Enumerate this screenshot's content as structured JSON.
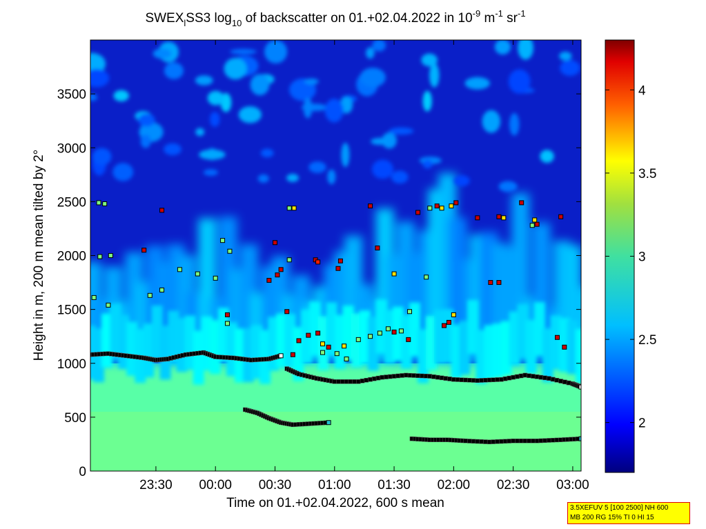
{
  "chart_data": {
    "type": "heatmap",
    "title": {
      "prefix": "SWEX",
      "sub1": "l",
      "mid1": "SS3 log",
      "sub2": "10",
      "mid2": " of backscatter on 01.+02.04.2022 in 10",
      "sup1": "-9",
      "mid3": " m",
      "sup2": "-1",
      "mid4": " sr",
      "sup3": "-1"
    },
    "xlabel": "Time on 01.+02.04.2022, 600 s mean",
    "ylabel": "Height in m, 200 m mean tilted by 2°",
    "x_ticks": [
      "23:30",
      "00:00",
      "00:30",
      "01:00",
      "01:30",
      "02:00",
      "02:30",
      "03:00"
    ],
    "x_tick_hours": [
      -0.5,
      0,
      0.5,
      1,
      1.5,
      2,
      2.5,
      3
    ],
    "xlim_hours": [
      -1.05,
      3.07
    ],
    "y_ticks": [
      "0",
      "500",
      "1000",
      "1500",
      "2000",
      "2500",
      "3000",
      "3500"
    ],
    "y_tick_values": [
      0,
      500,
      1000,
      1500,
      2000,
      2500,
      3000,
      3500
    ],
    "ylim": [
      0,
      4000
    ],
    "colorbar": {
      "ticks": [
        "2",
        "2.5",
        "3",
        "3.5",
        "4"
      ],
      "tick_values": [
        2,
        2.5,
        3,
        3.5,
        4
      ],
      "range": [
        1.7,
        4.3
      ],
      "colormap": "jet"
    },
    "layers": {
      "aerosol_top_height": 1000,
      "boundary_layer_value": 2.9,
      "mid_layer_value": 2.55,
      "free_troposphere_value": 1.8
    },
    "series": [
      {
        "type": "line",
        "color": "#000000",
        "x": [
          -1.05,
          -0.9,
          -0.75,
          -0.6,
          -0.5,
          -0.4,
          -0.25,
          -0.1,
          0.0,
          0.15,
          0.3,
          0.45,
          0.55
        ],
        "y": [
          1080,
          1090,
          1070,
          1050,
          1030,
          1040,
          1080,
          1100,
          1060,
          1050,
          1030,
          1040,
          1070
        ]
      },
      {
        "type": "line",
        "color": "#000000",
        "x": [
          0.6,
          0.7,
          0.85,
          1.0,
          1.2,
          1.4,
          1.6,
          1.8,
          2.0,
          2.2,
          2.4,
          2.6,
          2.8,
          3.0,
          3.07
        ],
        "y": [
          950,
          900,
          860,
          830,
          830,
          870,
          890,
          880,
          850,
          840,
          850,
          890,
          860,
          810,
          780
        ]
      },
      {
        "type": "line",
        "color": "#000000",
        "x": [
          0.25,
          0.35,
          0.45,
          0.55,
          0.65,
          0.8,
          0.95
        ],
        "y": [
          570,
          540,
          490,
          450,
          430,
          440,
          450
        ]
      },
      {
        "type": "line",
        "color": "#000000",
        "x": [
          1.65,
          1.8,
          1.95,
          2.1,
          2.3,
          2.5,
          2.7,
          2.9,
          3.07
        ],
        "y": [
          300,
          290,
          290,
          280,
          270,
          280,
          280,
          290,
          300
        ]
      }
    ],
    "markers": [
      {
        "x": -0.98,
        "y": 2490,
        "v": 3.0
      },
      {
        "x": -0.93,
        "y": 2480,
        "v": 3.0
      },
      {
        "x": -0.45,
        "y": 2420,
        "v": 4.1
      },
      {
        "x": -0.97,
        "y": 1990,
        "v": 3.0
      },
      {
        "x": -0.88,
        "y": 2000,
        "v": 3.0
      },
      {
        "x": -0.6,
        "y": 2050,
        "v": 4.1
      },
      {
        "x": -0.3,
        "y": 1870,
        "v": 3.0
      },
      {
        "x": -0.15,
        "y": 1830,
        "v": 3.0
      },
      {
        "x": 0.0,
        "y": 1790,
        "v": 3.0
      },
      {
        "x": 0.06,
        "y": 2140,
        "v": 3.0
      },
      {
        "x": 0.12,
        "y": 2040,
        "v": 3.0
      },
      {
        "x": -1.02,
        "y": 1610,
        "v": 3.0
      },
      {
        "x": -0.9,
        "y": 1540,
        "v": 3.0
      },
      {
        "x": -0.55,
        "y": 1630,
        "v": 3.0
      },
      {
        "x": -0.45,
        "y": 1680,
        "v": 3.0
      },
      {
        "x": 0.1,
        "y": 1450,
        "v": 4.1
      },
      {
        "x": 0.1,
        "y": 1370,
        "v": 3.0
      },
      {
        "x": 0.5,
        "y": 2120,
        "v": 4.1
      },
      {
        "x": 0.62,
        "y": 2440,
        "v": 3.0
      },
      {
        "x": 0.66,
        "y": 2440,
        "v": 3.4
      },
      {
        "x": 0.62,
        "y": 1960,
        "v": 3.0
      },
      {
        "x": 0.52,
        "y": 1820,
        "v": 4.1
      },
      {
        "x": 0.45,
        "y": 1770,
        "v": 4.1
      },
      {
        "x": 0.55,
        "y": 1870,
        "v": 4.1
      },
      {
        "x": 0.84,
        "y": 1960,
        "v": 4.1
      },
      {
        "x": 0.86,
        "y": 1940,
        "v": 3.9
      },
      {
        "x": 1.05,
        "y": 1950,
        "v": 4.1
      },
      {
        "x": 1.03,
        "y": 1880,
        "v": 4.1
      },
      {
        "x": 1.3,
        "y": 2460,
        "v": 4.1
      },
      {
        "x": 1.36,
        "y": 2070,
        "v": 4.1
      },
      {
        "x": 1.5,
        "y": 1830,
        "v": 3.4
      },
      {
        "x": 1.77,
        "y": 1800,
        "v": 3.0
      },
      {
        "x": 1.63,
        "y": 1480,
        "v": 3.0
      },
      {
        "x": 0.6,
        "y": 1480,
        "v": 4.1
      },
      {
        "x": 0.7,
        "y": 1210,
        "v": 4.1
      },
      {
        "x": 0.78,
        "y": 1260,
        "v": 4.1
      },
      {
        "x": 0.86,
        "y": 1280,
        "v": 4.1
      },
      {
        "x": 0.9,
        "y": 1180,
        "v": 3.4
      },
      {
        "x": 0.95,
        "y": 1150,
        "v": 4.1
      },
      {
        "x": 0.9,
        "y": 1100,
        "v": 3.0
      },
      {
        "x": 1.02,
        "y": 1090,
        "v": 3.0
      },
      {
        "x": 1.08,
        "y": 1160,
        "v": 3.4
      },
      {
        "x": 1.2,
        "y": 1220,
        "v": 3.0
      },
      {
        "x": 1.3,
        "y": 1250,
        "v": 3.0
      },
      {
        "x": 1.38,
        "y": 1280,
        "v": 3.0
      },
      {
        "x": 1.45,
        "y": 1320,
        "v": 3.0
      },
      {
        "x": 1.5,
        "y": 1290,
        "v": 4.1
      },
      {
        "x": 1.56,
        "y": 1300,
        "v": 3.0
      },
      {
        "x": 1.62,
        "y": 1220,
        "v": 4.1
      },
      {
        "x": 1.1,
        "y": 1040,
        "v": 3.0
      },
      {
        "x": 0.65,
        "y": 1080,
        "v": 4.1
      },
      {
        "x": 1.92,
        "y": 1350,
        "v": 4.1
      },
      {
        "x": 1.96,
        "y": 1380,
        "v": 4.1
      },
      {
        "x": 2.0,
        "y": 1450,
        "v": 3.4
      },
      {
        "x": 1.9,
        "y": 2440,
        "v": 3.4
      },
      {
        "x": 1.98,
        "y": 2460,
        "v": 3.4
      },
      {
        "x": 2.02,
        "y": 2490,
        "v": 4.1
      },
      {
        "x": 1.7,
        "y": 2400,
        "v": 4.1
      },
      {
        "x": 1.8,
        "y": 2440,
        "v": 3.0
      },
      {
        "x": 1.86,
        "y": 2460,
        "v": 4.1
      },
      {
        "x": 2.2,
        "y": 2350,
        "v": 4.1
      },
      {
        "x": 2.38,
        "y": 2360,
        "v": 4.1
      },
      {
        "x": 2.42,
        "y": 2350,
        "v": 3.4
      },
      {
        "x": 2.57,
        "y": 2490,
        "v": 4.1
      },
      {
        "x": 2.68,
        "y": 2330,
        "v": 3.4
      },
      {
        "x": 2.7,
        "y": 2290,
        "v": 4.1
      },
      {
        "x": 2.66,
        "y": 2280,
        "v": 3.0
      },
      {
        "x": 2.9,
        "y": 2360,
        "v": 4.1
      },
      {
        "x": 2.31,
        "y": 1750,
        "v": 4.1
      },
      {
        "x": 2.38,
        "y": 1750,
        "v": 4.1
      },
      {
        "x": 2.87,
        "y": 1240,
        "v": 4.1
      },
      {
        "x": 2.93,
        "y": 1150,
        "v": 4.1
      }
    ]
  },
  "info_box": {
    "line1": "3.5XEFUV 5 [100 2500] NH 600",
    "line2": "MB 200 RG 15% TI 0 HI 15"
  }
}
